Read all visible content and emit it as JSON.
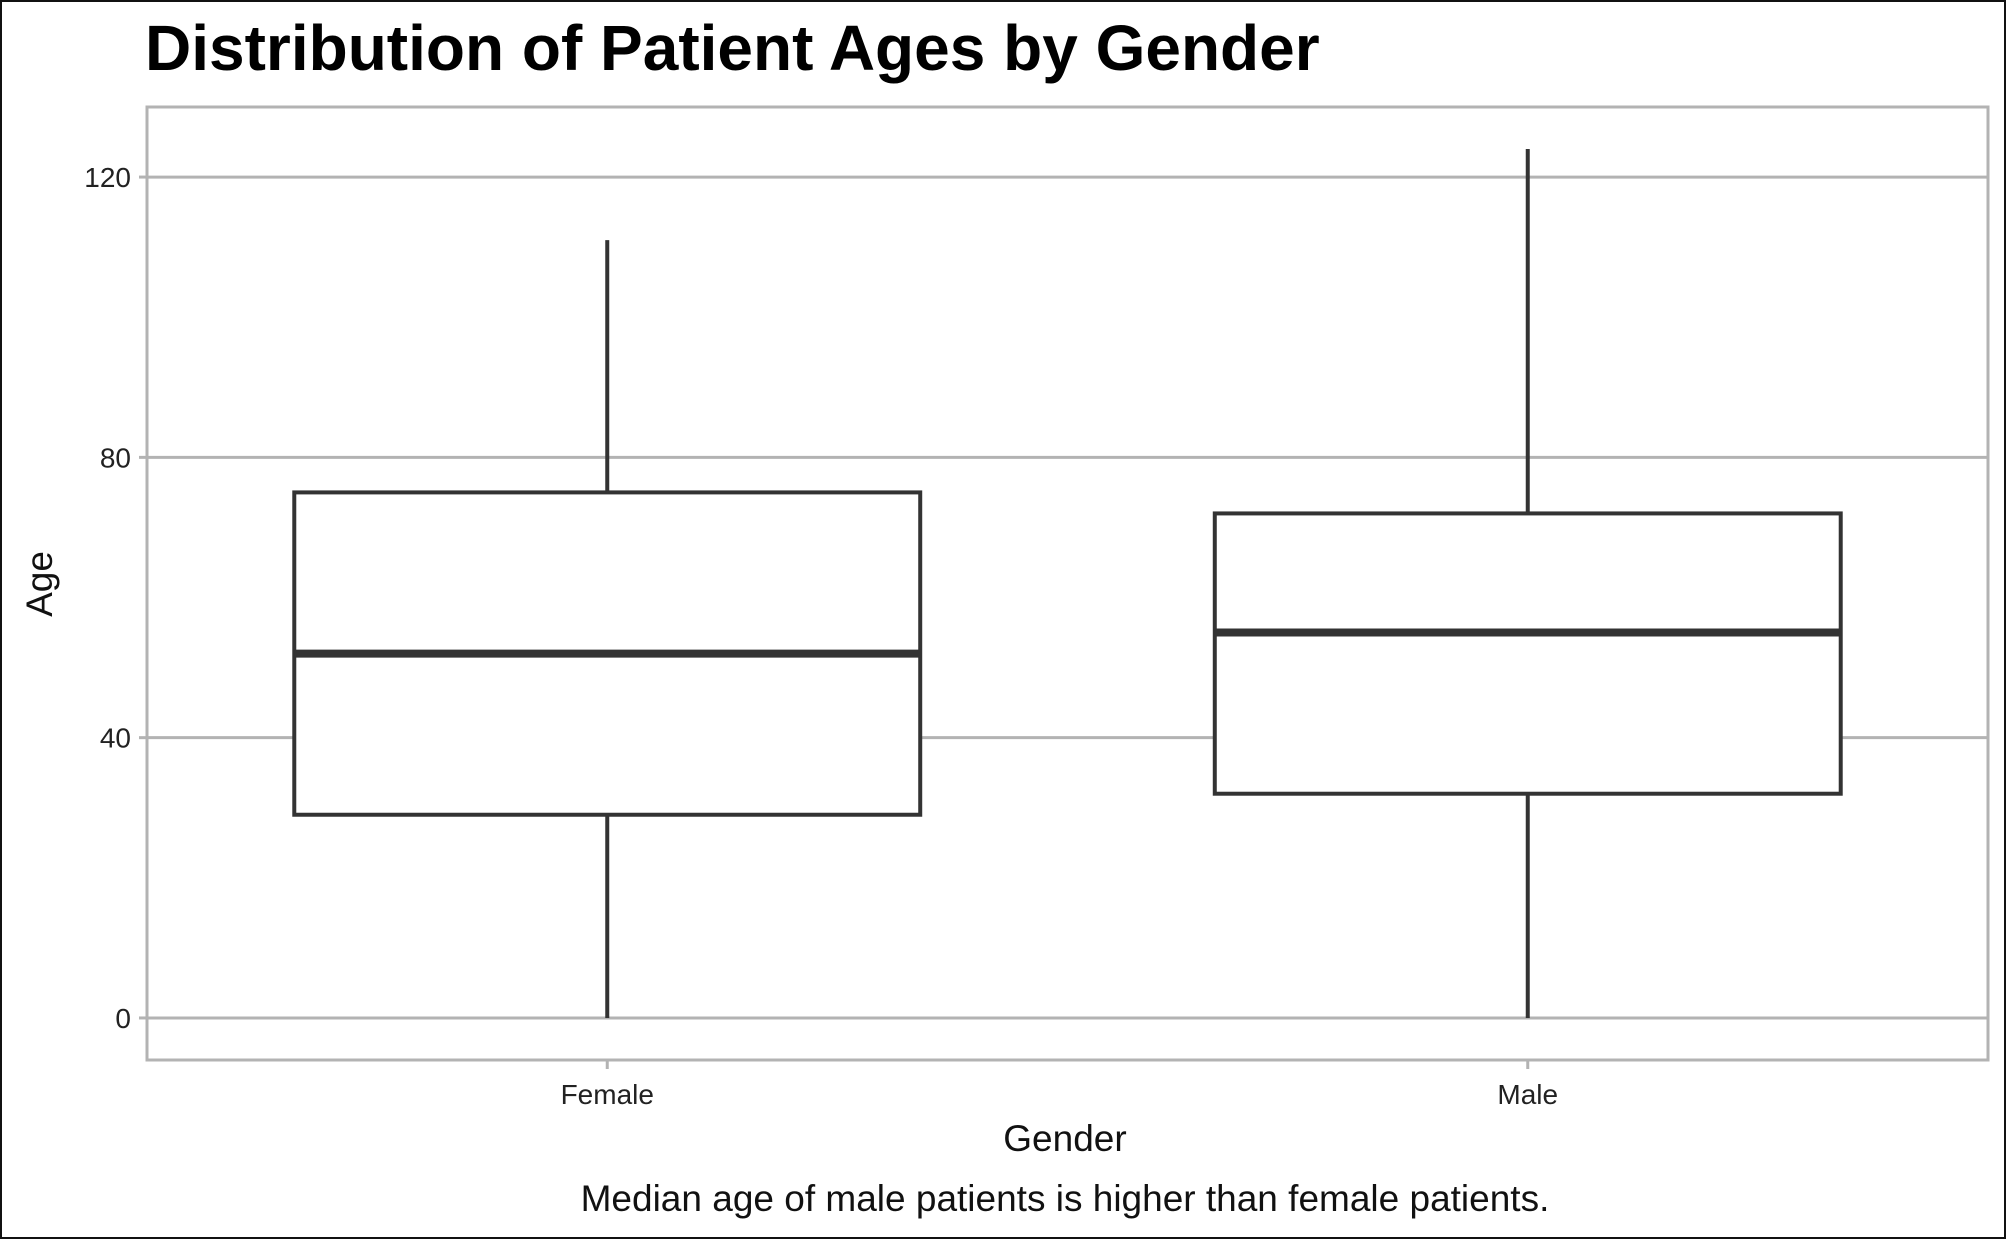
{
  "chart_data": {
    "type": "box",
    "title": "Distribution of Patient Ages by Gender",
    "xlabel": "Gender",
    "ylabel": "Age",
    "caption": "Median age of male patients is higher than female patients.",
    "categories": [
      "Female",
      "Male"
    ],
    "boxes": [
      {
        "category": "Female",
        "min": 0,
        "q1": 29,
        "median": 52,
        "q3": 75,
        "max": 111
      },
      {
        "category": "Male",
        "min": 0,
        "q1": 32,
        "median": 55,
        "q3": 72,
        "max": 124
      }
    ],
    "yticks": [
      0,
      40,
      80,
      120
    ],
    "ylim": [
      -6,
      130
    ],
    "grid": true,
    "legend": "none",
    "colors": {
      "box_outline": "#333333",
      "box_fill": "#ffffff",
      "grid": "#b3b3b3",
      "panel_border": "#b3b3b3"
    }
  }
}
